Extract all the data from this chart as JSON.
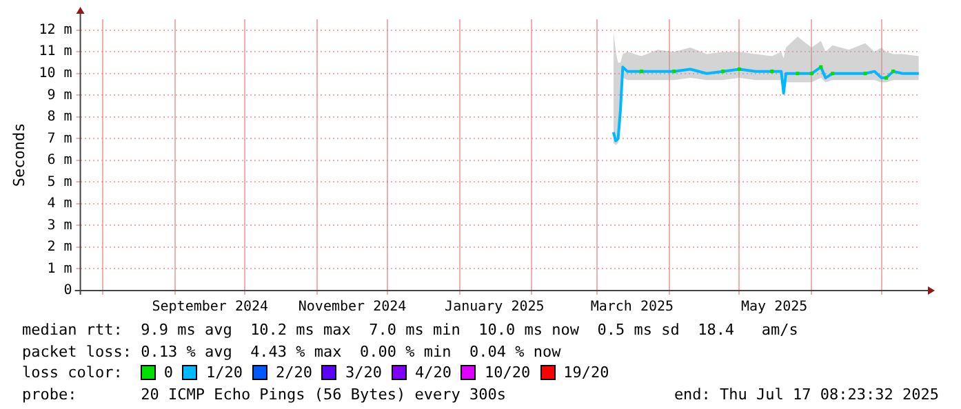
{
  "chart_data": {
    "type": "line",
    "ylabel": "Seconds",
    "legend_title": "loss color:",
    "legend": "bottom",
    "grid": true,
    "xlim": [
      "2024-07-22T08:23",
      "2025-07-17T08:23"
    ],
    "xticks": [
      {
        "value": "2024-08-01",
        "label": null
      },
      {
        "value": "2024-09-01",
        "label": null
      },
      {
        "value": "2024-09-16",
        "label": "September 2024"
      },
      {
        "value": "2024-10-01",
        "label": null
      },
      {
        "value": "2024-11-01",
        "label": null
      },
      {
        "value": "2024-11-16",
        "label": "November 2024"
      },
      {
        "value": "2024-12-01",
        "label": null
      },
      {
        "value": "2025-01-01",
        "label": null
      },
      {
        "value": "2025-01-16",
        "label": "January 2025"
      },
      {
        "value": "2025-02-01",
        "label": null
      },
      {
        "value": "2025-03-01",
        "label": null
      },
      {
        "value": "2025-03-16",
        "label": "March 2025"
      },
      {
        "value": "2025-04-01",
        "label": null
      },
      {
        "value": "2025-05-01",
        "label": null
      },
      {
        "value": "2025-05-16",
        "label": "May 2025"
      },
      {
        "value": "2025-06-01",
        "label": null
      },
      {
        "value": "2025-07-01",
        "label": null
      }
    ],
    "ylim": [
      0,
      12.5
    ],
    "yticks": [
      0,
      {
        "value": 1,
        "label": "1 m"
      },
      {
        "value": 2,
        "label": "2 m"
      },
      {
        "value": 3,
        "label": "3 m"
      },
      {
        "value": 4,
        "label": "4 m"
      },
      {
        "value": 5,
        "label": "5 m"
      },
      {
        "value": 6,
        "label": "6 m"
      },
      {
        "value": 7,
        "label": "7 m"
      },
      {
        "value": 8,
        "label": "8 m"
      },
      {
        "value": 9,
        "label": "9 m"
      },
      {
        "value": 10,
        "label": "10 m"
      },
      {
        "value": 11,
        "label": "11 m"
      },
      {
        "value": 12,
        "label": "12 m"
      }
    ],
    "x": [
      "2025-03-08",
      "2025-03-09",
      "2025-03-10",
      "2025-03-11",
      "2025-03-12",
      "2025-03-14",
      "2025-03-20",
      "2025-03-27",
      "2025-04-03",
      "2025-04-10",
      "2025-04-17",
      "2025-04-24",
      "2025-05-01",
      "2025-05-08",
      "2025-05-15",
      "2025-05-19",
      "2025-05-20",
      "2025-05-21",
      "2025-05-26",
      "2025-06-01",
      "2025-06-05",
      "2025-06-07",
      "2025-06-10",
      "2025-06-17",
      "2025-06-24",
      "2025-06-28",
      "2025-07-01",
      "2025-07-03",
      "2025-07-06",
      "2025-07-10",
      "2025-07-17"
    ],
    "series": [
      {
        "name": "0",
        "color": "#00e000",
        "type": "scatter",
        "marker": "square",
        "values": [
          null,
          null,
          null,
          null,
          null,
          null,
          10.1,
          null,
          10.1,
          null,
          null,
          10.1,
          10.2,
          null,
          10.1,
          null,
          null,
          null,
          10.0,
          10.0,
          10.3,
          null,
          10.0,
          null,
          10.0,
          null,
          null,
          9.8,
          10.1,
          null,
          null
        ]
      },
      {
        "name": "1/20",
        "color": "#00b8ff",
        "values": [
          7.3,
          6.9,
          7.0,
          8.3,
          10.3,
          10.1,
          10.1,
          10.1,
          10.1,
          10.2,
          10.0,
          10.1,
          10.2,
          10.1,
          10.1,
          10.1,
          9.1,
          10.0,
          10.0,
          10.0,
          10.3,
          9.8,
          10.0,
          10.0,
          10.0,
          10.1,
          9.8,
          9.8,
          10.1,
          10.0,
          10.0
        ],
        "lower": [
          6.8,
          6.7,
          6.8,
          7.5,
          9.8,
          9.7,
          9.7,
          9.7,
          9.7,
          9.8,
          9.7,
          9.7,
          9.8,
          9.7,
          9.7,
          9.7,
          9.0,
          9.6,
          9.6,
          9.6,
          9.8,
          9.6,
          9.7,
          9.7,
          9.7,
          9.7,
          9.6,
          9.6,
          9.7,
          9.7,
          9.7
        ],
        "upper": [
          12.0,
          11.0,
          10.5,
          10.5,
          10.9,
          11.0,
          10.8,
          11.1,
          11.0,
          11.2,
          10.9,
          11.0,
          11.0,
          10.9,
          10.8,
          11.0,
          10.7,
          11.2,
          11.7,
          11.2,
          11.5,
          11.0,
          11.3,
          11.1,
          11.4,
          11.0,
          11.2,
          11.0,
          10.9,
          10.9,
          10.8
        ]
      },
      {
        "name": "2/20",
        "color": "#0059ff",
        "values": [
          null,
          null,
          null,
          null,
          null,
          null,
          null,
          null,
          null,
          null,
          null,
          null,
          null,
          null,
          null,
          null,
          null,
          null,
          null,
          null,
          null,
          null,
          null,
          null,
          null,
          null,
          null,
          null,
          null,
          null,
          null
        ]
      },
      {
        "name": "3/20",
        "color": "#5e00ff",
        "values": [
          null,
          null,
          null,
          null,
          null,
          null,
          null,
          null,
          null,
          null,
          null,
          null,
          null,
          null,
          null,
          null,
          null,
          null,
          null,
          null,
          null,
          null,
          null,
          null,
          null,
          null,
          null,
          null,
          null,
          null,
          null
        ]
      },
      {
        "name": "4/20",
        "color": "#7e00ff",
        "values": [
          null,
          null,
          null,
          null,
          null,
          null,
          null,
          null,
          null,
          null,
          null,
          null,
          null,
          null,
          null,
          null,
          null,
          null,
          null,
          null,
          null,
          null,
          null,
          null,
          null,
          null,
          null,
          null,
          null,
          null,
          null
        ]
      },
      {
        "name": "10/20",
        "color": "#dd00ff",
        "values": [
          null,
          null,
          null,
          null,
          null,
          null,
          null,
          null,
          null,
          null,
          null,
          null,
          null,
          null,
          null,
          null,
          null,
          null,
          null,
          null,
          null,
          null,
          null,
          null,
          null,
          null,
          null,
          null,
          null,
          null,
          null
        ]
      },
      {
        "name": "19/20",
        "color": "#ff0000",
        "values": [
          null,
          null,
          null,
          null,
          null,
          null,
          null,
          null,
          null,
          null,
          null,
          null,
          null,
          null,
          null,
          null,
          null,
          null,
          null,
          null,
          null,
          null,
          null,
          null,
          null,
          null,
          null,
          null,
          null,
          null,
          null
        ]
      }
    ],
    "annotations": [
      "median rtt:  9.9 ms avg  10.2 ms max  7.0 ms min  10.0 ms now  0.5 ms sd  18.4   am/s",
      "packet loss: 0.13 % avg  4.43 % max  0.00 % min  0.04 % now",
      "probe:       20 ICMP Echo Pings (56 Bytes) every 300s",
      "end: Thu Jul 17 08:23:32 2025"
    ]
  }
}
